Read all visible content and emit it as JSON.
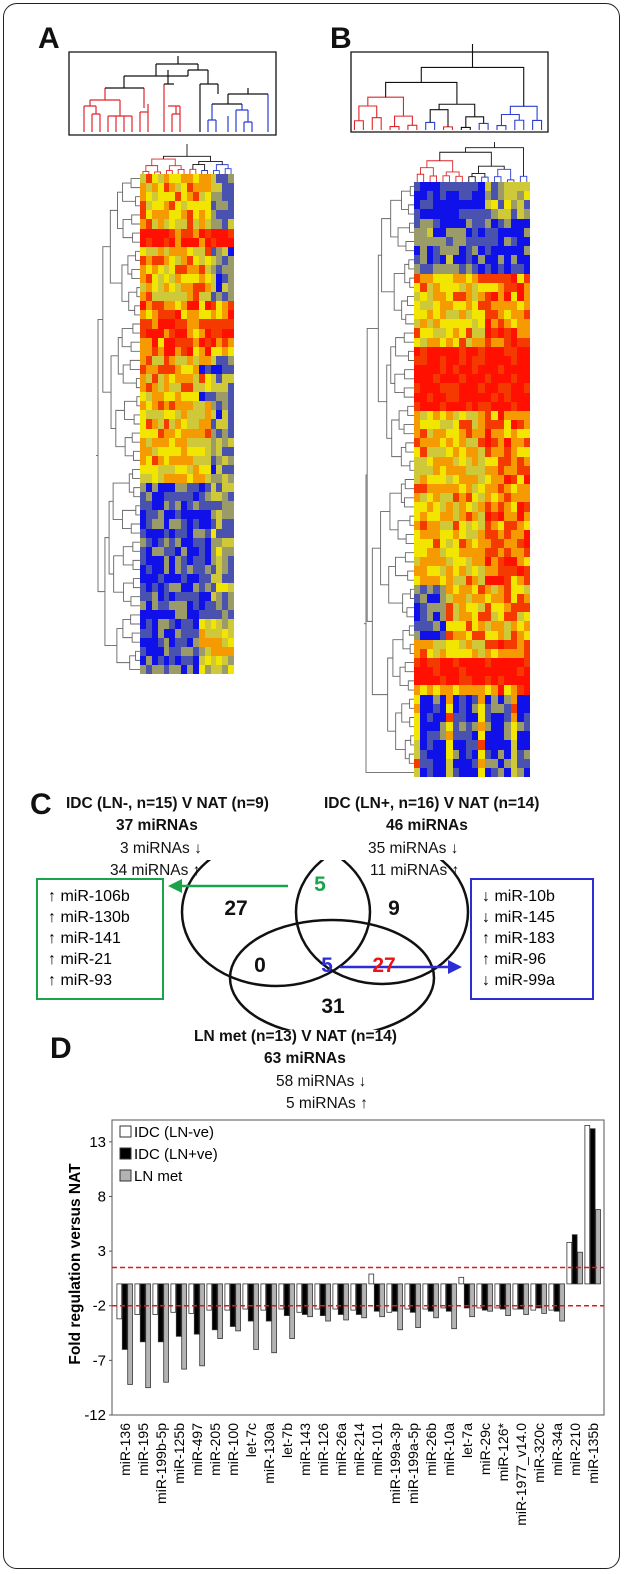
{
  "panels": {
    "a": {
      "label": "A"
    },
    "b": {
      "label": "B"
    },
    "c": {
      "label": "C"
    },
    "d": {
      "label": "D"
    }
  },
  "heatmap_colors": [
    "#1010e8",
    "#4a52b0",
    "#9b9b6a",
    "#cfc839",
    "#f2e600",
    "#f59a00",
    "#f53a00",
    "#ff1000"
  ],
  "venn": {
    "left": {
      "title": "IDC (LN-, n=15) V NAT (n=9)",
      "total": "37 miRNAs",
      "down": "3 miRNAs ↓",
      "up": "34 miRNAs ↑"
    },
    "right": {
      "title": "IDC (LN+, n=16) V NAT (n=14)",
      "total": "46 miRNAs",
      "down": "35 miRNAs ↓",
      "up": "11 miRNAs ↑"
    },
    "bottom": {
      "title": "LN  met (n=13) V NAT (n=14)",
      "total": "63 miRNAs",
      "down": "58 miRNAs ↓",
      "up": "5 miRNAs ↑"
    },
    "counts": {
      "left_only": "27",
      "right_only": "9",
      "bottom_only": "31",
      "left_right": "5",
      "left_bottom": "0",
      "right_bottom": "27",
      "all_three": "5"
    },
    "green_box": [
      "↑ miR-106b",
      "↑ miR-130b",
      "↑ miR-141",
      "↑ miR-21",
      "↑ miR-93"
    ],
    "blue_box": [
      "↓ miR-10b",
      "↓ miR-145",
      "↑ miR-183",
      "↑ miR-96",
      "↓ miR-99a"
    ],
    "colors": {
      "green": "#1aa34a",
      "blue": "#2d2dd6",
      "red": "#e8141a"
    }
  },
  "chart_data": {
    "type": "bar",
    "ylabel": "Fold regulation versus NAT",
    "ylim": [
      -12,
      15
    ],
    "yticks": [
      13,
      8,
      3,
      -2,
      -7,
      -12
    ],
    "threshold_lines": [
      1.5,
      -2
    ],
    "categories": [
      "miR-136",
      "miR-195",
      "miR-199b-5p",
      "miR-125b",
      "miR-497",
      "miR-205",
      "miR-100",
      "let-7c",
      "miR-130a",
      "let-7b",
      "miR-143",
      "miR-126",
      "miR-26a",
      "miR-214",
      "miR-101",
      "miR-199a-3p",
      "miR-199a-5p",
      "miR-26b",
      "miR-10a",
      "let-7a",
      "miR-29c",
      "miR-126*",
      "miR-1977_v14.0",
      "miR-320c",
      "miR-34a",
      "miR-210",
      "miR-135b"
    ],
    "series": [
      {
        "name": "IDC (LN-ve)",
        "color": "#ffffff",
        "values": [
          -3.2,
          -2.8,
          -2.8,
          -2.6,
          -2.7,
          -2.4,
          -2.4,
          -2.3,
          -2.4,
          -2.3,
          -2.6,
          -2.3,
          -2.3,
          -2.4,
          0.9,
          -2.6,
          -2.3,
          -2.3,
          -2.2,
          0.6,
          -2.2,
          -2.2,
          -2.3,
          -2.4,
          -2.4,
          3.8,
          14.5
        ]
      },
      {
        "name": "IDC (LN+ve)",
        "color": "#000000",
        "values": [
          -6.0,
          -5.3,
          -5.3,
          -4.8,
          -4.6,
          -4.2,
          -3.9,
          -3.4,
          -3.4,
          -2.9,
          -2.8,
          -2.9,
          -2.8,
          -2.8,
          -2.5,
          -2.5,
          -2.6,
          -2.5,
          -2.5,
          -2.2,
          -2.4,
          -2.3,
          -2.3,
          -2.2,
          -2.5,
          4.5,
          14.2
        ]
      },
      {
        "name": "LN met",
        "color": "#b3b3b3",
        "values": [
          -9.2,
          -9.5,
          -9.0,
          -7.8,
          -7.5,
          -5.0,
          -4.3,
          -6.0,
          -6.3,
          -5.0,
          -3.0,
          -3.4,
          -3.3,
          -3.1,
          -3.0,
          -4.2,
          -4.0,
          -3.1,
          -4.1,
          -3.0,
          -2.5,
          -2.9,
          -2.8,
          -2.7,
          -3.4,
          2.9,
          6.8
        ]
      }
    ]
  }
}
